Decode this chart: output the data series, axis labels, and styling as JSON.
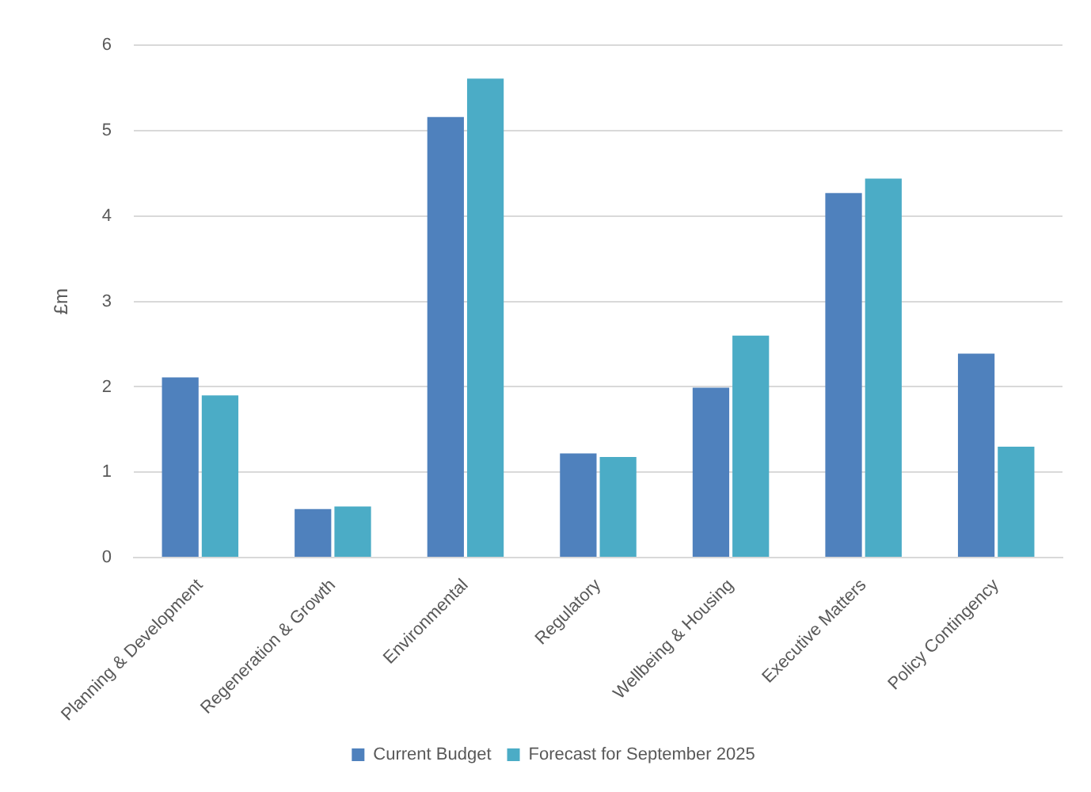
{
  "chart_data": {
    "type": "bar",
    "ylabel": "£m",
    "categories": [
      "Planning & Development",
      "Regeneration & Growth",
      "Environmental",
      "Regulatory",
      "Wellbeing & Housing",
      "Executive Matters",
      "Policy Contingency"
    ],
    "series": [
      {
        "name": "Current Budget",
        "color": "#4f81bd",
        "values": [
          2.11,
          0.57,
          5.16,
          1.22,
          1.99,
          4.27,
          2.39
        ]
      },
      {
        "name": "Forecast for September 2025",
        "color": "#4bacc6",
        "values": [
          1.9,
          0.6,
          5.61,
          1.18,
          2.6,
          4.44,
          1.3
        ]
      }
    ],
    "ylim": [
      0,
      6
    ],
    "yticks": [
      0,
      1,
      2,
      3,
      4,
      5,
      6
    ],
    "grid": "y",
    "legend": "bottom"
  }
}
